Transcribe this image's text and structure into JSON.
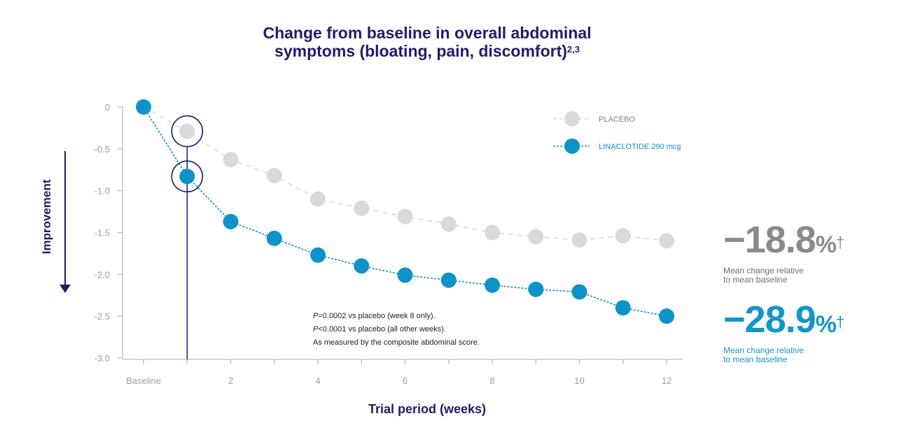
{
  "title": {
    "line1": "Change from baseline in overall abdominal",
    "line2": "symptoms (bloating, pain, discomfort)",
    "superscript": "2,3"
  },
  "side_label": "Improvement",
  "stats": {
    "placebo": {
      "value": "−18.8",
      "percent": "%",
      "dagger": "†",
      "caption_line1": "Mean change relative",
      "caption_line2": "to mean baseline"
    },
    "linaclotide": {
      "value": "−28.9",
      "percent": "%",
      "dagger": "†",
      "caption_line1": "Mean change relative",
      "caption_line2": "to mean baseline"
    }
  },
  "footnotes": {
    "line1_italic": "P",
    "line1_rest": "=0.0002 vs placebo (week 8 only).",
    "line2_italic": "P",
    "line2_rest": "<0.0001 vs placebo (all other weeks).",
    "line3": "As measured by the composite abdominal score."
  },
  "chart_data": {
    "type": "line",
    "title": "Change from baseline in overall abdominal symptoms (bloating, pain, discomfort)",
    "xlabel": "Trial period (weeks)",
    "ylabel": "Improvement",
    "x": [
      0,
      1,
      2,
      3,
      4,
      5,
      6,
      7,
      8,
      9,
      10,
      11,
      12
    ],
    "x_tick_labels": [
      {
        "x": 0,
        "label": "Baseline"
      },
      {
        "x": 2,
        "label": "2"
      },
      {
        "x": 4,
        "label": "4"
      },
      {
        "x": 6,
        "label": "6"
      },
      {
        "x": 8,
        "label": "8"
      },
      {
        "x": 10,
        "label": "10"
      },
      {
        "x": 12,
        "label": "12"
      }
    ],
    "y_ticks": [
      0,
      -0.5,
      -1.0,
      -1.5,
      -2.0,
      -2.5,
      -3.0
    ],
    "y_tick_labels": [
      "0",
      "-0.5",
      "-1.0",
      "-1.5",
      "-2.0",
      "-2.5",
      "-3.0"
    ],
    "ylim": [
      -3.0,
      0
    ],
    "xlim": [
      0,
      12
    ],
    "grid": false,
    "legend_position": "top-right",
    "series": [
      {
        "name": "PLACEBO",
        "color": "#d9d9d9",
        "text_color": "#7d7d7d",
        "line_style": "dashed",
        "x": [
          1,
          2,
          3,
          4,
          5,
          6,
          7,
          8,
          9,
          10,
          11,
          12
        ],
        "values": [
          -0.29,
          -0.63,
          -0.82,
          -1.1,
          -1.21,
          -1.31,
          -1.4,
          -1.5,
          -1.55,
          -1.59,
          -1.54,
          -1.6
        ]
      },
      {
        "name": "LINACLOTIDE 290 mcg",
        "color": "#0e93c9",
        "text_color": "#0e93c9",
        "line_style": "dotted",
        "x": [
          0,
          1,
          2,
          3,
          4,
          5,
          6,
          7,
          8,
          9,
          10,
          11,
          12
        ],
        "values": [
          0,
          -0.83,
          -1.37,
          -1.57,
          -1.77,
          -1.9,
          -2.01,
          -2.07,
          -2.13,
          -2.18,
          -2.21,
          -2.4,
          -2.5
        ]
      }
    ],
    "highlighted_week": 1,
    "axis_color": "#bdbdbd",
    "highlight_color": "#221b6b"
  }
}
